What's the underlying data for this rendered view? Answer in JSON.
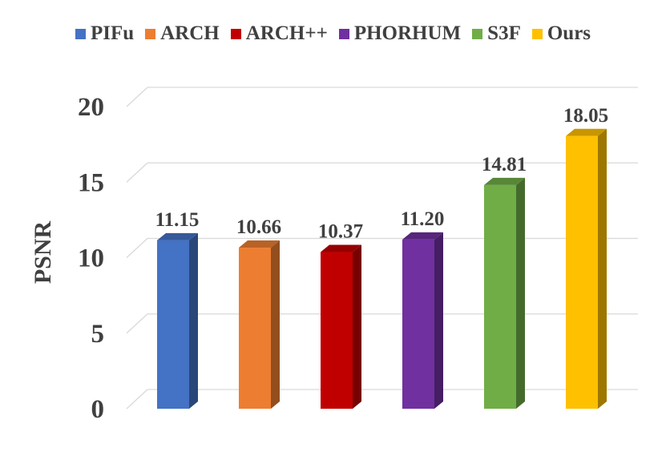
{
  "chart_data": {
    "type": "bar",
    "categories": [
      "PIFu",
      "ARCH",
      "ARCH++",
      "PHORHUM",
      "S3F",
      "Ours"
    ],
    "values": [
      11.15,
      10.66,
      10.37,
      11.2,
      14.81,
      18.05
    ],
    "data_labels": [
      "11.15",
      "10.66",
      "10.37",
      "11.20",
      "14.81",
      "18.05"
    ],
    "title": "",
    "xlabel": "",
    "ylabel": "PSNR",
    "ylim": [
      0,
      20
    ],
    "yticks": [
      "0",
      "5",
      "10",
      "15",
      "20"
    ],
    "grid": true,
    "legend_position": "top",
    "colors": [
      "#4472C4",
      "#ED7D31",
      "#C00000",
      "#7030A0",
      "#70AD47",
      "#FFC000"
    ],
    "style": "3d-bar"
  }
}
